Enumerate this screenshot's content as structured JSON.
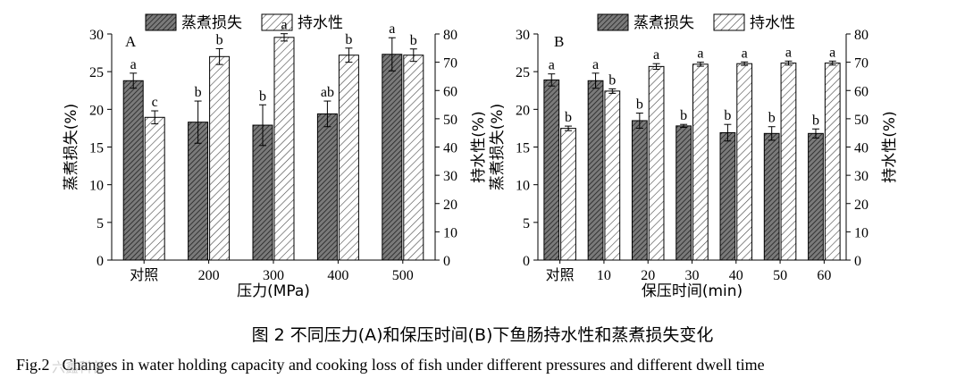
{
  "chart_data": [
    {
      "type": "bar",
      "panel_label": "A",
      "categories": [
        "对照",
        "200",
        "300",
        "400",
        "500"
      ],
      "xlabel": "压力(MPa)",
      "ylabel_left": "蒸煮损失(%)",
      "ylabel_right": "持水性(%)",
      "ylim_left": [
        0,
        30
      ],
      "yticks_left": [
        0,
        5,
        10,
        15,
        20,
        25,
        30
      ],
      "ylim_right": [
        0,
        80
      ],
      "yticks_right": [
        0,
        10,
        20,
        30,
        40,
        50,
        60,
        70,
        80
      ],
      "legend_position": "top",
      "series": [
        {
          "name": "蒸煮损失",
          "axis": "left",
          "pattern": "dense-hatch",
          "values": [
            23.8,
            18.3,
            17.9,
            19.4,
            27.3
          ],
          "errors": [
            1.0,
            2.8,
            2.7,
            1.7,
            2.2
          ],
          "labels": [
            "a",
            "b",
            "b",
            "ab",
            "a"
          ]
        },
        {
          "name": "持水性",
          "axis": "right",
          "pattern": "open-hatch",
          "values": [
            50.5,
            72.0,
            78.8,
            72.5,
            72.5
          ],
          "errors": [
            2.3,
            2.8,
            1.3,
            2.5,
            2.2
          ],
          "labels": [
            "c",
            "b",
            "a",
            "b",
            "b"
          ]
        }
      ]
    },
    {
      "type": "bar",
      "panel_label": "B",
      "categories": [
        "对照",
        "10",
        "20",
        "30",
        "40",
        "50",
        "60"
      ],
      "xlabel": "保压时间(min)",
      "ylabel_left": "蒸煮损失(%)",
      "ylabel_right": "持水性(%)",
      "ylim_left": [
        0,
        30
      ],
      "yticks_left": [
        0,
        5,
        10,
        15,
        20,
        25,
        30
      ],
      "ylim_right": [
        0,
        80
      ],
      "yticks_right": [
        0,
        10,
        20,
        30,
        40,
        50,
        60,
        70,
        80
      ],
      "legend_position": "top",
      "series": [
        {
          "name": "蒸煮损失",
          "axis": "left",
          "pattern": "dense-hatch",
          "values": [
            23.9,
            23.8,
            18.5,
            17.8,
            16.9,
            16.8,
            16.8
          ],
          "errors": [
            0.8,
            1.0,
            1.0,
            0.2,
            1.1,
            0.9,
            0.6
          ],
          "labels": [
            "a",
            "a",
            "b",
            "b",
            "b",
            "b",
            "b"
          ]
        },
        {
          "name": "持水性",
          "axis": "right",
          "pattern": "open-hatch",
          "values": [
            46.6,
            59.8,
            68.5,
            69.3,
            69.5,
            69.7,
            69.7
          ],
          "errors": [
            0.8,
            0.8,
            1.0,
            0.7,
            0.6,
            0.7,
            0.7
          ],
          "labels": [
            "b",
            "b",
            "a",
            "a",
            "a",
            "a",
            "a"
          ]
        }
      ]
    }
  ],
  "caption_zh": "图 2    不同压力(A)和保压时间(B)下鱼肠持水性和蒸煮损失变化",
  "caption_en_label": "Fig.2",
  "caption_en": "Changes in water holding capacity and cooking loss of fish under different pressures and different dwell time",
  "watermark": "六鑫科普"
}
